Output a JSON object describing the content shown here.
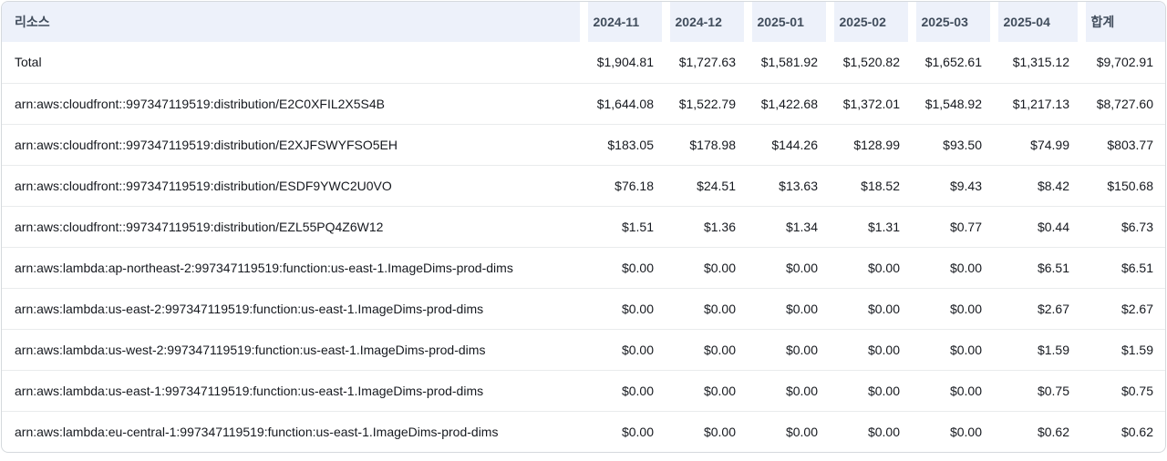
{
  "table": {
    "resource_header": "리소스",
    "month_headers": [
      "2024-11",
      "2024-12",
      "2025-01",
      "2025-02",
      "2025-03",
      "2025-04",
      "합계"
    ],
    "rows": [
      {
        "resource": "Total",
        "values": [
          "$1,904.81",
          "$1,727.63",
          "$1,581.92",
          "$1,520.82",
          "$1,652.61",
          "$1,315.12",
          "$9,702.91"
        ]
      },
      {
        "resource": "arn:aws:cloudfront::997347119519:distribution/E2C0XFIL2X5S4B",
        "values": [
          "$1,644.08",
          "$1,522.79",
          "$1,422.68",
          "$1,372.01",
          "$1,548.92",
          "$1,217.13",
          "$8,727.60"
        ]
      },
      {
        "resource": "arn:aws:cloudfront::997347119519:distribution/E2XJFSWYFSO5EH",
        "values": [
          "$183.05",
          "$178.98",
          "$144.26",
          "$128.99",
          "$93.50",
          "$74.99",
          "$803.77"
        ]
      },
      {
        "resource": "arn:aws:cloudfront::997347119519:distribution/ESDF9YWC2U0VO",
        "values": [
          "$76.18",
          "$24.51",
          "$13.63",
          "$18.52",
          "$9.43",
          "$8.42",
          "$150.68"
        ]
      },
      {
        "resource": "arn:aws:cloudfront::997347119519:distribution/EZL55PQ4Z6W12",
        "values": [
          "$1.51",
          "$1.36",
          "$1.34",
          "$1.31",
          "$0.77",
          "$0.44",
          "$6.73"
        ]
      },
      {
        "resource": "arn:aws:lambda:ap-northeast-2:997347119519:function:us-east-1.ImageDims-prod-dims",
        "values": [
          "$0.00",
          "$0.00",
          "$0.00",
          "$0.00",
          "$0.00",
          "$6.51",
          "$6.51"
        ]
      },
      {
        "resource": "arn:aws:lambda:us-east-2:997347119519:function:us-east-1.ImageDims-prod-dims",
        "values": [
          "$0.00",
          "$0.00",
          "$0.00",
          "$0.00",
          "$0.00",
          "$2.67",
          "$2.67"
        ]
      },
      {
        "resource": "arn:aws:lambda:us-west-2:997347119519:function:us-east-1.ImageDims-prod-dims",
        "values": [
          "$0.00",
          "$0.00",
          "$0.00",
          "$0.00",
          "$0.00",
          "$1.59",
          "$1.59"
        ]
      },
      {
        "resource": "arn:aws:lambda:us-east-1:997347119519:function:us-east-1.ImageDims-prod-dims",
        "values": [
          "$0.00",
          "$0.00",
          "$0.00",
          "$0.00",
          "$0.00",
          "$0.75",
          "$0.75"
        ]
      },
      {
        "resource": "arn:aws:lambda:eu-central-1:997347119519:function:us-east-1.ImageDims-prod-dims",
        "values": [
          "$0.00",
          "$0.00",
          "$0.00",
          "$0.00",
          "$0.00",
          "$0.62",
          "$0.62"
        ]
      }
    ]
  },
  "colors": {
    "header_background": "#edf1fa",
    "header_text": "#414d5c",
    "body_text": "#16191f",
    "row_divider": "#e9ebed",
    "outer_border": "#d5d9dd"
  }
}
